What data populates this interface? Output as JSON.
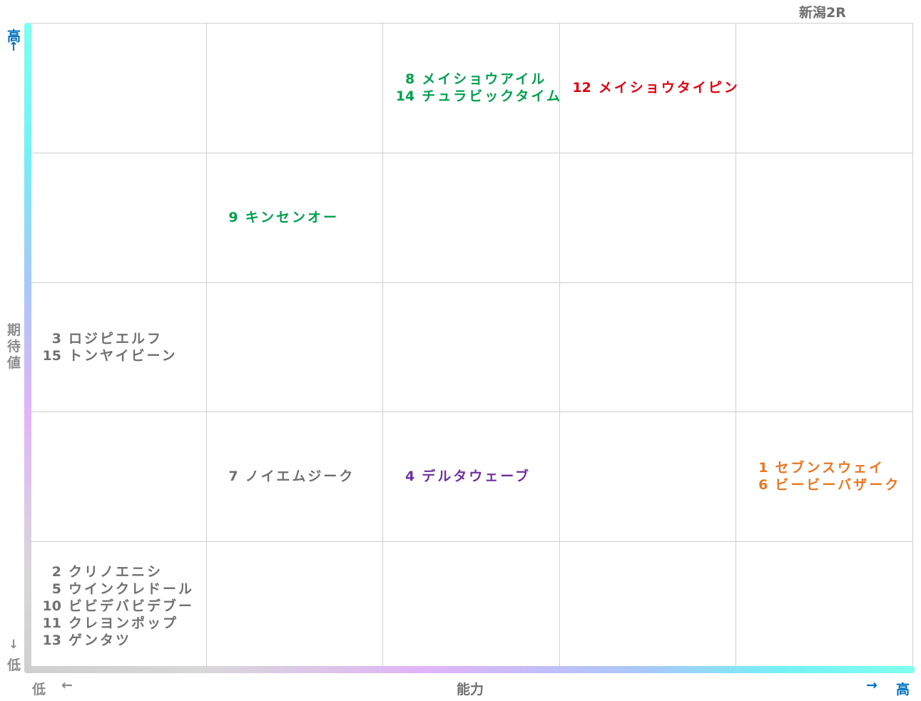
{
  "title": "新潟2R",
  "axes": {
    "y_label": "期待値",
    "y_high": "高",
    "y_high_arrow": "↑",
    "y_low": "低",
    "y_low_arrow": "↓",
    "x_label": "能力",
    "x_low": "低",
    "x_low_arrow": "←",
    "x_high": "高",
    "x_high_arrow": "→"
  },
  "colors": {
    "gray": "#707070",
    "green": "#00a050",
    "red": "#e00010",
    "purple": "#7030a0",
    "orange": "#e87722",
    "axis_blue": "#0070c0",
    "axis_gray": "#8c8c8c"
  },
  "chart_data": {
    "type": "table",
    "columns": 5,
    "rows": 5,
    "x_axis": "能力",
    "y_axis": "期待値",
    "cells": [
      {
        "col": 3,
        "row": 5,
        "color": "green",
        "horses": [
          {
            "num": "8",
            "name": "メイショウアイル"
          },
          {
            "num": "14",
            "name": "チュラビックタイム"
          }
        ]
      },
      {
        "col": 4,
        "row": 5,
        "color": "red",
        "horses": [
          {
            "num": "12",
            "name": "メイショウタイピン"
          }
        ]
      },
      {
        "col": 2,
        "row": 4,
        "color": "green",
        "horses": [
          {
            "num": "9",
            "name": "キンセンオー"
          }
        ]
      },
      {
        "col": 1,
        "row": 3,
        "color": "gray",
        "horses": [
          {
            "num": "3",
            "name": "ロジピエルフ"
          },
          {
            "num": "15",
            "name": "トンヤイビーン"
          }
        ]
      },
      {
        "col": 2,
        "row": 2,
        "color": "gray",
        "horses": [
          {
            "num": "7",
            "name": "ノイエムジーク"
          }
        ]
      },
      {
        "col": 3,
        "row": 2,
        "color": "purple",
        "horses": [
          {
            "num": "4",
            "name": "デルタウェーブ"
          }
        ]
      },
      {
        "col": 5,
        "row": 2,
        "color": "orange",
        "horses": [
          {
            "num": "1",
            "name": "セブンスウェイ"
          },
          {
            "num": "6",
            "name": "ビービーバザーク"
          }
        ]
      },
      {
        "col": 1,
        "row": 1,
        "color": "gray",
        "horses": [
          {
            "num": "2",
            "name": "クリノエニシ"
          },
          {
            "num": "5",
            "name": "ウインクレドール"
          },
          {
            "num": "10",
            "name": "ビビデバビデブー"
          },
          {
            "num": "11",
            "name": "クレヨンポップ"
          },
          {
            "num": "13",
            "name": "ゲンタツ"
          }
        ]
      }
    ]
  }
}
